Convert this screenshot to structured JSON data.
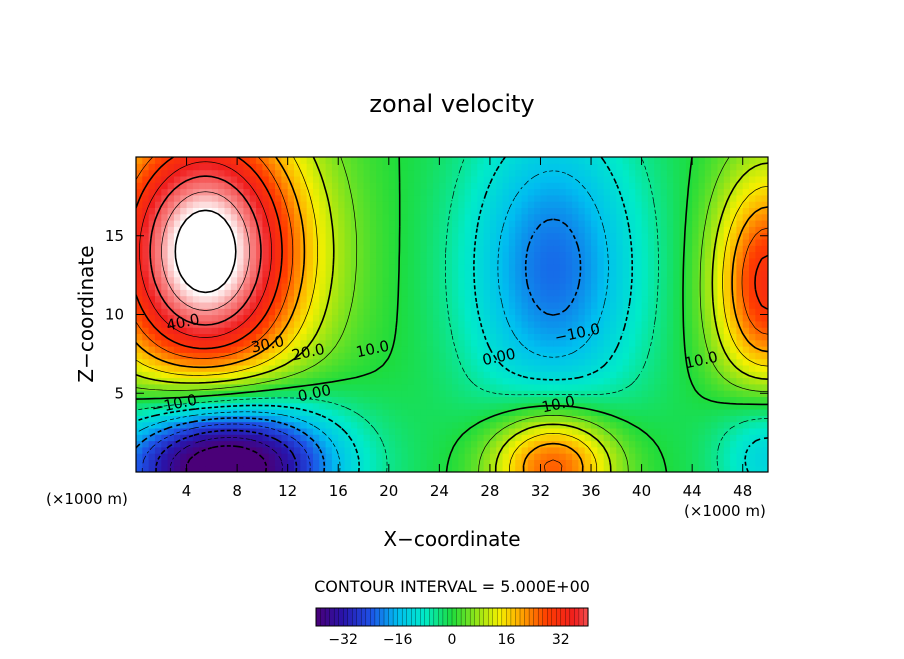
{
  "chart_data": {
    "type": "heatmap",
    "title": "zonal velocity",
    "xlabel": "X−coordinate",
    "ylabel": "Z−coordinate",
    "x_unit_left": "(×1000 m)",
    "x_unit_right": "(×1000 m)",
    "xlim": [
      0,
      50
    ],
    "ylim": [
      0,
      20
    ],
    "x_ticks": [
      4,
      8,
      12,
      16,
      20,
      24,
      28,
      32,
      36,
      40,
      44,
      48
    ],
    "y_ticks": [
      5,
      10,
      15
    ],
    "contour_interval_text": "CONTOUR INTERVAL = 5.000E+00",
    "colorbar_ticks": [
      -32,
      -16,
      0,
      16,
      32
    ],
    "colorbar_range": [
      -40,
      40
    ],
    "colorbar_tick_labels": [
      "−32",
      "−16",
      "0",
      "16",
      "32"
    ],
    "contour_labels": [
      {
        "text": "40.0",
        "x": 3.8,
        "y": 9.2
      },
      {
        "text": "30.0",
        "x": 10.5,
        "y": 7.8
      },
      {
        "text": "20.0",
        "x": 13.7,
        "y": 7.3
      },
      {
        "text": "10.0",
        "x": 18.8,
        "y": 7.5
      },
      {
        "text": "0.00",
        "x": 14.2,
        "y": 4.7
      },
      {
        "text": "−10.0",
        "x": 3.1,
        "y": 4.0
      },
      {
        "text": "0.00",
        "x": 28.8,
        "y": 7.0
      },
      {
        "text": "−10.0",
        "x": 35.0,
        "y": 8.5
      },
      {
        "text": "10.0",
        "x": 33.5,
        "y": 4.0
      },
      {
        "text": "10.0",
        "x": 44.8,
        "y": 6.8
      }
    ],
    "field_centers": [
      {
        "x": 5.5,
        "y": 14,
        "value": 55,
        "sx": 5.5,
        "sy": 6
      },
      {
        "x": 7,
        "y": 0.5,
        "value": -50,
        "sx": 6,
        "sy": 3
      },
      {
        "x": 33,
        "y": 13,
        "value": -22,
        "sx": 5,
        "sy": 7
      },
      {
        "x": 33,
        "y": 0.5,
        "value": 30,
        "sx": 3.5,
        "sy": 2.5
      },
      {
        "x": 50,
        "y": 12,
        "value": 32,
        "sx": 3,
        "sy": 5
      },
      {
        "x": 50,
        "y": 1.5,
        "value": -15,
        "sx": 3,
        "sy": 3
      }
    ]
  }
}
